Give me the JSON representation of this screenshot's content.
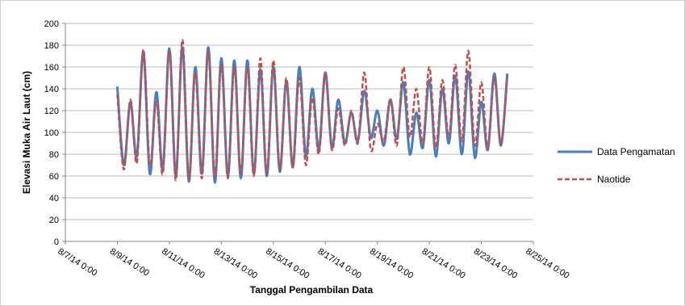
{
  "chart_data": {
    "type": "line",
    "title": "",
    "xlabel": "Tanggal Pengambilan Data",
    "ylabel": "Elevasi Muka Air Laut (cm)",
    "ylim": [
      0,
      200
    ],
    "yticks": [
      0,
      20,
      40,
      60,
      80,
      100,
      120,
      140,
      160,
      180,
      200
    ],
    "xlim": [
      "2014-08-07 00:00",
      "2014-08-25 00:00"
    ],
    "xticks": [
      "2014-08-07 00:00",
      "2014-08-09 00:00",
      "2014-08-11 00:00",
      "2014-08-13 00:00",
      "2014-08-15 00:00",
      "2014-08-17 00:00",
      "2014-08-19 00:00",
      "2014-08-21 00:00",
      "2014-08-23 00:00",
      "2014-08-25 00:00"
    ],
    "xtick_labels": [
      "8/7/14 0:00",
      "8/9/14 0:00",
      "8/11/14 0:00",
      "8/13/14 0:00",
      "8/15/14 0:00",
      "8/17/14 0:00",
      "8/19/14 0:00",
      "8/21/14 0:00",
      "8/23/14 0:00",
      "8/25/14 0:00"
    ],
    "grid": "horizontal",
    "legend_position": "right",
    "series": [
      {
        "name": "Data Pengamatan",
        "color": "#4a7ebb",
        "style": "solid",
        "x": [
          "2014-08-09 00:00",
          "2014-08-09 06:00",
          "2014-08-09 12:00",
          "2014-08-09 18:00",
          "2014-08-10 00:00",
          "2014-08-10 06:00",
          "2014-08-10 12:00",
          "2014-08-10 18:00",
          "2014-08-11 00:00",
          "2014-08-11 06:00",
          "2014-08-11 12:00",
          "2014-08-11 18:00",
          "2014-08-12 00:00",
          "2014-08-12 06:00",
          "2014-08-12 12:00",
          "2014-08-12 18:00",
          "2014-08-13 00:00",
          "2014-08-13 06:00",
          "2014-08-13 12:00",
          "2014-08-13 18:00",
          "2014-08-14 00:00",
          "2014-08-14 06:00",
          "2014-08-14 12:00",
          "2014-08-14 18:00",
          "2014-08-15 00:00",
          "2014-08-15 06:00",
          "2014-08-15 12:00",
          "2014-08-15 18:00",
          "2014-08-16 00:00",
          "2014-08-16 06:00",
          "2014-08-16 12:00",
          "2014-08-16 18:00",
          "2014-08-17 00:00",
          "2014-08-17 06:00",
          "2014-08-17 12:00",
          "2014-08-17 18:00",
          "2014-08-18 00:00",
          "2014-08-18 06:00",
          "2014-08-18 12:00",
          "2014-08-18 18:00",
          "2014-08-19 00:00",
          "2014-08-19 06:00",
          "2014-08-19 12:00",
          "2014-08-19 18:00",
          "2014-08-20 00:00",
          "2014-08-20 06:00",
          "2014-08-20 12:00",
          "2014-08-20 18:00",
          "2014-08-21 00:00",
          "2014-08-21 06:00",
          "2014-08-21 12:00",
          "2014-08-21 18:00",
          "2014-08-22 00:00",
          "2014-08-22 06:00",
          "2014-08-22 12:00",
          "2014-08-22 18:00",
          "2014-08-23 00:00",
          "2014-08-23 06:00",
          "2014-08-23 12:00",
          "2014-08-23 18:00",
          "2014-08-24 00:00"
        ],
        "y": [
          142,
          70,
          128,
          78,
          174,
          62,
          137,
          66,
          177,
          60,
          178,
          55,
          160,
          62,
          178,
          54,
          168,
          60,
          166,
          58,
          166,
          62,
          158,
          60,
          160,
          64,
          147,
          68,
          160,
          78,
          140,
          84,
          155,
          86,
          130,
          90,
          118,
          92,
          138,
          95,
          120,
          88,
          130,
          94,
          146,
          80,
          118,
          86,
          148,
          78,
          140,
          90,
          152,
          80,
          156,
          77,
          128,
          84,
          154,
          88,
          154
        ]
      },
      {
        "name": "Naotide",
        "color": "#c0504d",
        "style": "dashed",
        "x": [
          "2014-08-09 00:00",
          "2014-08-09 06:00",
          "2014-08-09 12:00",
          "2014-08-09 18:00",
          "2014-08-10 00:00",
          "2014-08-10 06:00",
          "2014-08-10 12:00",
          "2014-08-10 18:00",
          "2014-08-11 00:00",
          "2014-08-11 06:00",
          "2014-08-11 12:00",
          "2014-08-11 18:00",
          "2014-08-12 00:00",
          "2014-08-12 06:00",
          "2014-08-12 12:00",
          "2014-08-12 18:00",
          "2014-08-13 00:00",
          "2014-08-13 06:00",
          "2014-08-13 12:00",
          "2014-08-13 18:00",
          "2014-08-14 00:00",
          "2014-08-14 06:00",
          "2014-08-14 12:00",
          "2014-08-14 18:00",
          "2014-08-15 00:00",
          "2014-08-15 06:00",
          "2014-08-15 12:00",
          "2014-08-15 18:00",
          "2014-08-16 00:00",
          "2014-08-16 06:00",
          "2014-08-16 12:00",
          "2014-08-16 18:00",
          "2014-08-17 00:00",
          "2014-08-17 06:00",
          "2014-08-17 12:00",
          "2014-08-17 18:00",
          "2014-08-18 00:00",
          "2014-08-18 06:00",
          "2014-08-18 12:00",
          "2014-08-18 18:00",
          "2014-08-19 00:00",
          "2014-08-19 06:00",
          "2014-08-19 12:00",
          "2014-08-19 18:00",
          "2014-08-20 00:00",
          "2014-08-20 06:00",
          "2014-08-20 12:00",
          "2014-08-20 18:00",
          "2014-08-21 00:00",
          "2014-08-21 06:00",
          "2014-08-21 12:00",
          "2014-08-21 18:00",
          "2014-08-22 00:00",
          "2014-08-22 06:00",
          "2014-08-22 12:00",
          "2014-08-22 18:00",
          "2014-08-23 00:00",
          "2014-08-23 06:00",
          "2014-08-23 12:00",
          "2014-08-23 18:00",
          "2014-08-24 00:00"
        ],
        "y": [
          135,
          66,
          130,
          72,
          176,
          70,
          128,
          62,
          175,
          56,
          185,
          58,
          155,
          58,
          175,
          60,
          162,
          58,
          160,
          62,
          160,
          60,
          168,
          62,
          166,
          66,
          150,
          68,
          150,
          70,
          132,
          80,
          154,
          84,
          122,
          88,
          120,
          90,
          155,
          84,
          108,
          92,
          130,
          88,
          160,
          96,
          140,
          90,
          160,
          86,
          148,
          96,
          162,
          92,
          175,
          88,
          146,
          85,
          150,
          90,
          150
        ]
      }
    ]
  }
}
